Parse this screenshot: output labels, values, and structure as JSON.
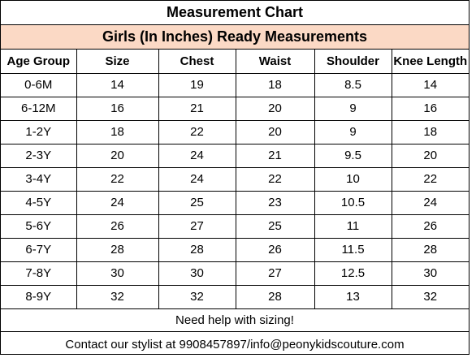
{
  "title": "Measurement Chart",
  "subtitle": "Girls (In Inches) Ready Measurements",
  "table": {
    "headers": [
      "Age Group",
      "Size",
      "Chest",
      "Waist",
      "Shoulder",
      "Knee Length"
    ],
    "rows": [
      [
        "0-6M",
        "14",
        "19",
        "18",
        "8.5",
        "14"
      ],
      [
        "6-12M",
        "16",
        "21",
        "20",
        "9",
        "16"
      ],
      [
        "1-2Y",
        "18",
        "22",
        "20",
        "9",
        "18"
      ],
      [
        "2-3Y",
        "20",
        "24",
        "21",
        "9.5",
        "20"
      ],
      [
        "3-4Y",
        "22",
        "24",
        "22",
        "10",
        "22"
      ],
      [
        "4-5Y",
        "24",
        "25",
        "23",
        "10.5",
        "24"
      ],
      [
        "5-6Y",
        "26",
        "27",
        "25",
        "11",
        "26"
      ],
      [
        "6-7Y",
        "28",
        "28",
        "26",
        "11.5",
        "28"
      ],
      [
        "7-8Y",
        "30",
        "30",
        "27",
        "12.5",
        "30"
      ],
      [
        "8-9Y",
        "32",
        "32",
        "28",
        "13",
        "32"
      ]
    ]
  },
  "help_text": "Need help with sizing!",
  "contact_text": "Contact our stylist at 9908457897/info@peonykidscouture.com",
  "colors": {
    "subtitle_background": "#fbd9c5",
    "border": "#000000"
  }
}
